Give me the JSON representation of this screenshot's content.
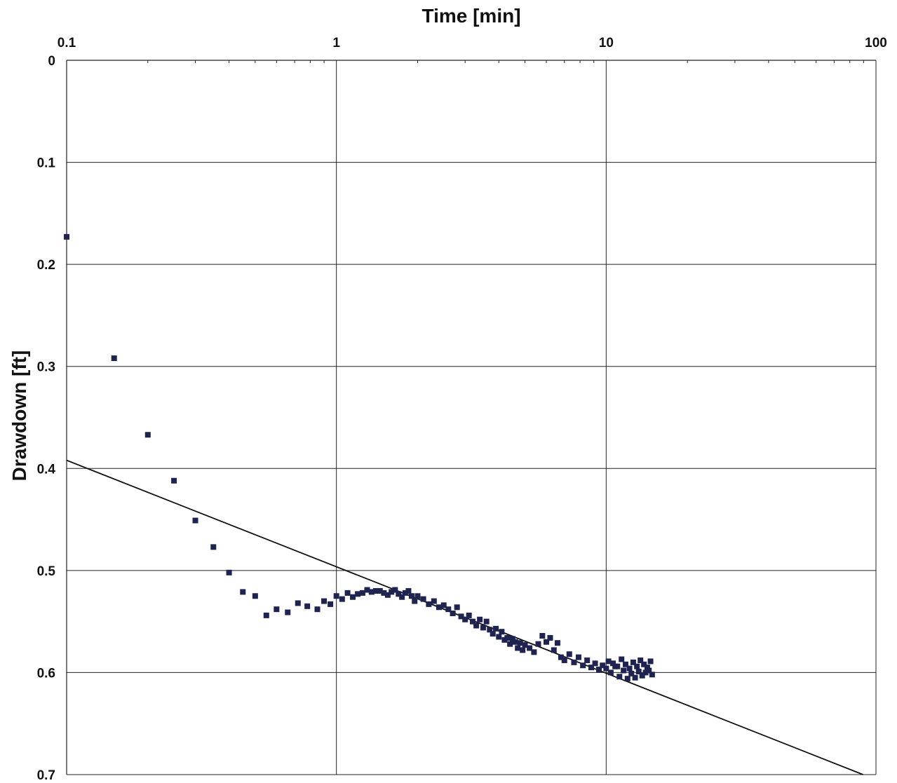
{
  "chart_data": {
    "type": "scatter",
    "xlabel": "Time [min]",
    "ylabel": "Drawdown [ft]",
    "x_scale": "log",
    "x_axis_position": "top",
    "y_axis_inverted": true,
    "xlim": [
      0.1,
      100
    ],
    "ylim": [
      0,
      0.7
    ],
    "x_ticks": [
      "0.1",
      "1",
      "10",
      "100"
    ],
    "y_ticks": [
      "0",
      "0.1",
      "0.2",
      "0.3",
      "0.4",
      "0.5",
      "0.6",
      "0.7"
    ],
    "grid": true,
    "colors": {
      "points": "#1f2350",
      "line": "#111111",
      "grid": "#222222"
    },
    "series": [
      {
        "type": "scatter",
        "x": [
          0.1,
          0.15,
          0.2,
          0.25,
          0.3,
          0.35,
          0.4,
          0.45,
          0.5,
          0.55,
          0.6,
          0.66,
          0.72,
          0.78,
          0.85,
          0.9,
          0.95,
          1.0,
          1.05,
          1.1,
          1.15,
          1.2,
          1.25,
          1.3,
          1.35,
          1.4,
          1.45,
          1.5,
          1.55,
          1.6,
          1.65,
          1.7,
          1.75,
          1.8,
          1.85,
          1.9,
          1.95,
          2.0,
          2.1,
          2.2,
          2.3,
          2.4,
          2.5,
          2.6,
          2.7,
          2.8,
          2.9,
          3.0,
          3.1,
          3.2,
          3.3,
          3.4,
          3.5,
          3.6,
          3.7,
          3.8,
          3.9,
          4.0,
          4.1,
          4.2,
          4.3,
          4.4,
          4.5,
          4.6,
          4.7,
          4.8,
          4.9,
          5.0,
          5.2,
          5.4,
          5.6,
          5.8,
          6.0,
          6.2,
          6.4,
          6.6,
          6.8,
          7.0,
          7.3,
          7.6,
          7.9,
          8.2,
          8.5,
          8.8,
          9.1,
          9.4,
          9.7,
          10.0,
          10.4,
          10.8,
          11.2,
          11.6,
          12.0,
          12.4,
          12.8,
          13.2,
          13.6,
          14.0,
          14.4,
          14.8,
          10.2,
          10.6,
          11.0,
          11.4,
          11.8,
          12.2,
          12.6,
          13.0,
          13.4,
          13.8,
          14.2,
          14.6
        ],
        "y": [
          0.173,
          0.292,
          0.367,
          0.412,
          0.451,
          0.477,
          0.502,
          0.521,
          0.525,
          0.544,
          0.538,
          0.541,
          0.532,
          0.535,
          0.538,
          0.53,
          0.533,
          0.525,
          0.528,
          0.522,
          0.526,
          0.523,
          0.522,
          0.519,
          0.521,
          0.52,
          0.52,
          0.522,
          0.524,
          0.521,
          0.519,
          0.523,
          0.526,
          0.522,
          0.52,
          0.525,
          0.53,
          0.525,
          0.528,
          0.533,
          0.53,
          0.536,
          0.534,
          0.538,
          0.542,
          0.536,
          0.545,
          0.548,
          0.544,
          0.55,
          0.554,
          0.548,
          0.556,
          0.55,
          0.558,
          0.562,
          0.557,
          0.565,
          0.56,
          0.568,
          0.566,
          0.572,
          0.567,
          0.57,
          0.576,
          0.571,
          0.578,
          0.573,
          0.576,
          0.58,
          0.572,
          0.564,
          0.57,
          0.566,
          0.578,
          0.571,
          0.585,
          0.588,
          0.582,
          0.59,
          0.585,
          0.593,
          0.588,
          0.595,
          0.591,
          0.597,
          0.593,
          0.596,
          0.6,
          0.594,
          0.604,
          0.598,
          0.606,
          0.601,
          0.605,
          0.599,
          0.603,
          0.6,
          0.598,
          0.602,
          0.589,
          0.591,
          0.594,
          0.587,
          0.592,
          0.596,
          0.59,
          0.594,
          0.588,
          0.592,
          0.595,
          0.589
        ]
      },
      {
        "type": "line",
        "x": [
          0.1,
          100
        ],
        "y": [
          0.392,
          0.705
        ]
      }
    ]
  }
}
